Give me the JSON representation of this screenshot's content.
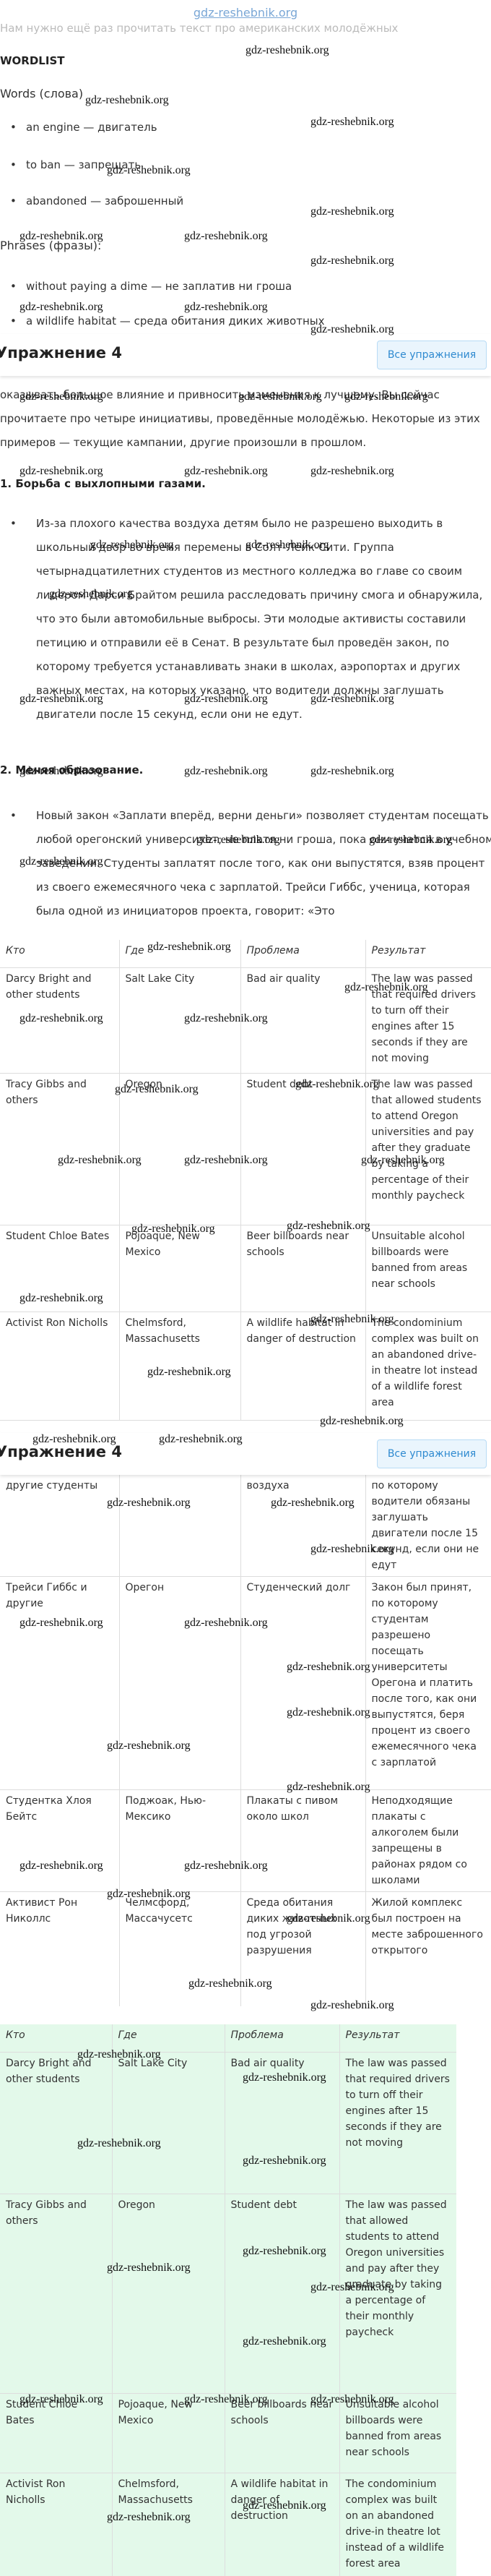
{
  "watermark": "gdz-reshebnik.org",
  "top_text": "Нам нужно ещё раз прочитать текст про американских молодёжных",
  "wordlist": {
    "title": "WORDLIST",
    "words_heading": "Words (слова)",
    "words": [
      "an engine — двигатель",
      "to ban — запрещать",
      "abandoned — заброшенный"
    ],
    "phrases_heading": "Phrases (фразы):",
    "phrases": [
      "without paying a dime — не заплатив ни гроша",
      "a wildlife habitat — среда обитания диких животных"
    ]
  },
  "exercise_bar": {
    "title": "Упражнение 4",
    "button": "Все упражнения"
  },
  "intro": "оказывать большое влияние и привносить изменения к лучшему. Вы сейчас прочитаете про четыре инициативы, проведённые молодёжью. Некоторые из этих примеров — текущие кампании, другие произошли в прошлом.",
  "sections": [
    {
      "heading": "1. Борьба с выхлопными газами.",
      "text": "Из-за плохого качества воздуха детям было не разрешено выходить в школьный двор во время перемены в Солт-Лейк-Сити. Группа четырнадцатилетних студентов из местного колледжа во главе со своим лидером Дарси Брайтом решила расследовать причину смога и обнаружила, что это были автомобильные выбросы. Эти молодые активисты составили петицию и отправили её в Сенат. В результате был проведён закон, по которому требуется устанавливать знаки в школах, аэропортах и других важных местах, на которых указано, что водители должны заглушать двигатели после 15 секунд, если они не едут."
    },
    {
      "heading": "2. Меняя образование.",
      "text": "Новый закон «Заплати вперёд, верни деньги» позволяет студентам посещать любой орегонский университет, не платя ни гроша, пока они учатся в учебном заведении. Студенты заплатят после того, как они выпустятся, взяв процент из своего ежемесячного чека с зарплатой. Трейси Гиббс, ученица, которая была одной из инициаторов проекта, говорит: «Это"
    }
  ],
  "table_en": {
    "headers": [
      "Кто",
      "Где",
      "Проблема",
      "Результат"
    ],
    "rows": [
      [
        "Darcy Bright and other students",
        "Salt Lake City",
        "Bad air quality",
        "The law was passed that required drivers to turn off their engines after 15 seconds if they are not moving"
      ],
      [
        "Tracy Gibbs and others",
        "Oregon",
        "Student debt",
        "The law was passed that allowed students to attend Oregon universities and pay after they graduate by taking a percentage of their monthly paycheck"
      ],
      [
        "Student Chloe Bates",
        "Pojoaque, New Mexico",
        "Beer billboards near schools",
        "Unsuitable alcohol billboards were banned from areas near schools"
      ],
      [
        "Activist Ron Nicholls",
        "Chelmsford, Massachusetts",
        "A wildlife habitat in danger of destruction",
        "The condominium complex was built on an abandoned drive-in theatre lot instead of a wildlife forest area"
      ]
    ]
  },
  "table_ru": {
    "rows": [
      [
        "другие студенты",
        "",
        "воздуха",
        "по которому водители обязаны заглушать двигатели после 15 секунд, если они не едут"
      ],
      [
        "Трейси Гиббс и другие",
        "Орегон",
        "Студенческий долг",
        "Закон был принят, по которому студентам разрешено посещать университеты Орегона и платить после того, как они выпустятся, беря процент из своего ежемесячного чека с зарплатой"
      ],
      [
        "Студентка Хлоя Бейтс",
        "Поджоак, Нью-Мексико",
        "Плакаты с пивом около школ",
        "Неподходящие плакаты с алкоголем были запрещены в районах рядом со школами"
      ],
      [
        "Активист Рон Николлс",
        "Челмсфорд, Массачусетс",
        "Среда обитания диких животных под угрозой разрушения",
        "Жилой комплекс был построен на месте заброшенного открытого"
      ]
    ]
  }
}
